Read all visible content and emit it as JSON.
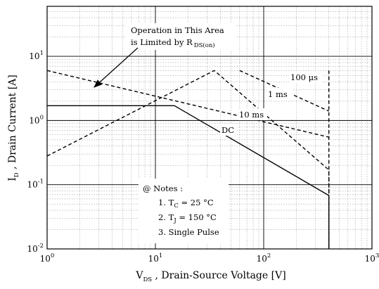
{
  "chart_data": {
    "type": "line",
    "title": "",
    "xlabel": {
      "main": "V",
      "sub": "DS",
      "rest": " , Drain-Source Voltage  [V]"
    },
    "ylabel": {
      "main": "I",
      "sub": "D",
      "rest": " , Drain Current  [A]"
    },
    "x_scale": "log",
    "y_scale": "log",
    "xlim": [
      1,
      1000
    ],
    "ylim": [
      0.01,
      60
    ],
    "grid": true,
    "x_ticks": [
      {
        "value": 1,
        "base": "10",
        "exp": "0"
      },
      {
        "value": 10,
        "base": "10",
        "exp": "1"
      },
      {
        "value": 100,
        "base": "10",
        "exp": "2"
      },
      {
        "value": 1000,
        "base": "10",
        "exp": "3"
      }
    ],
    "y_ticks": [
      {
        "value": 0.01,
        "base": "10",
        "exp": "-2"
      },
      {
        "value": 0.1,
        "base": "10",
        "exp": "-1"
      },
      {
        "value": 1,
        "base": "10",
        "exp": "0"
      },
      {
        "value": 10,
        "base": "10",
        "exp": "1"
      }
    ],
    "series": [
      {
        "name": "DC",
        "style": "solid",
        "points": [
          [
            1,
            1.7
          ],
          [
            15,
            1.7
          ],
          [
            400,
            0.068
          ],
          [
            400,
            0.01
          ]
        ]
      },
      {
        "name": "10 ms",
        "style": "dashed",
        "points": [
          [
            1,
            0.28
          ],
          [
            35,
            6
          ],
          [
            400,
            0.17
          ],
          [
            400,
            0.01
          ]
        ]
      },
      {
        "name": "1 ms",
        "style": "dashed",
        "points": [
          [
            1,
            6
          ],
          [
            400,
            0.55
          ]
        ]
      },
      {
        "name": "100 μs",
        "style": "dashed",
        "points": [
          [
            60,
            6
          ],
          [
            400,
            1.4
          ]
        ]
      },
      {
        "name": "",
        "style": "dashed",
        "points": [
          [
            400,
            6
          ],
          [
            400,
            0.01
          ]
        ]
      }
    ],
    "annotations": {
      "rds_line1": "Operation in This Area",
      "rds_line2": "is Limited by R",
      "rds_sub": "DS(on)",
      "label_100us": "100 μs",
      "label_1ms": "1 ms",
      "label_10ms": "10 ms",
      "label_dc": "DC"
    },
    "notes": {
      "title": "@ Notes :",
      "n1_prefix": "1. T",
      "n1_sub": "C",
      "n1_value": " = 25 °C",
      "n2_prefix": "2. T",
      "n2_sub": "J",
      "n2_value": " = 150 °C",
      "n3": "3. Single Pulse"
    }
  }
}
